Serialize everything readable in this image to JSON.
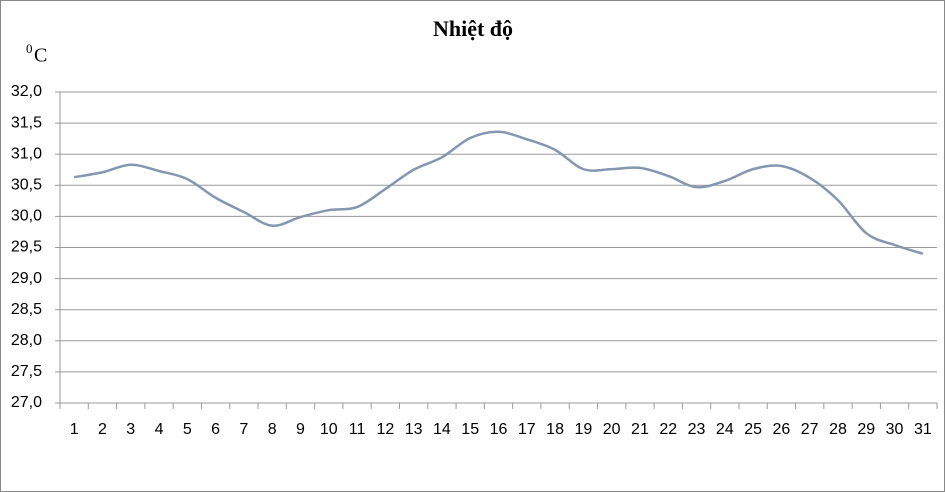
{
  "chart_data": {
    "type": "line",
    "title": "Nhiệt độ",
    "y_label_superscript": "0",
    "y_label": "C",
    "categories": [
      "1",
      "2",
      "3",
      "4",
      "5",
      "6",
      "7",
      "8",
      "9",
      "10",
      "11",
      "12",
      "13",
      "14",
      "15",
      "16",
      "17",
      "18",
      "19",
      "20",
      "21",
      "22",
      "23",
      "24",
      "25",
      "26",
      "27",
      "28",
      "29",
      "30",
      "31"
    ],
    "values": [
      30.63,
      30.71,
      30.83,
      30.73,
      30.6,
      30.3,
      30.07,
      29.85,
      29.99,
      30.1,
      30.15,
      30.44,
      30.75,
      30.95,
      31.26,
      31.36,
      31.24,
      31.07,
      30.76,
      30.76,
      30.78,
      30.65,
      30.47,
      30.57,
      30.76,
      30.81,
      30.62,
      30.26,
      29.73,
      29.54,
      29.4
    ],
    "color": "#8497b0",
    "ylim": [
      27,
      32
    ],
    "yticks": [
      {
        "value": 27,
        "label": "27,0"
      },
      {
        "value": 27.5,
        "label": "27,5"
      },
      {
        "value": 28,
        "label": "28,0"
      },
      {
        "value": 28.5,
        "label": "28,5"
      },
      {
        "value": 29,
        "label": "29,0"
      },
      {
        "value": 29.5,
        "label": "29,5"
      },
      {
        "value": 30,
        "label": "30,0"
      },
      {
        "value": 30.5,
        "label": "30,5"
      },
      {
        "value": 31,
        "label": "31,0"
      },
      {
        "value": 31.5,
        "label": "31,5"
      },
      {
        "value": 32,
        "label": "32,0"
      }
    ],
    "grid": true
  }
}
